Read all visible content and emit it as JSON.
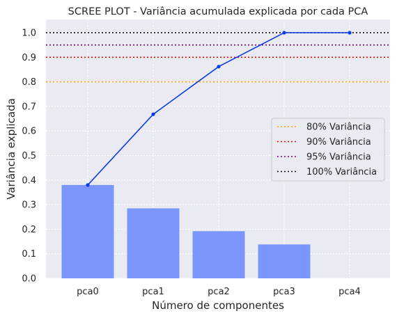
{
  "chart_data": {
    "type": "bar",
    "title": "SCREE PLOT - Variância acumulada explicada por cada PCA",
    "xlabel": "Número de componentes",
    "ylabel": "Variância explicada",
    "categories": [
      "pca0",
      "pca1",
      "pca2",
      "pca3",
      "pca4"
    ],
    "ylim": [
      0,
      1.05
    ],
    "yticks": [
      "0.0",
      "0.1",
      "0.2",
      "0.3",
      "0.4",
      "0.5",
      "0.6",
      "0.7",
      "0.8",
      "0.9",
      "1.0"
    ],
    "grid": true,
    "legend_position": "center-right",
    "bars": {
      "values": [
        0.38,
        0.285,
        0.192,
        0.138,
        0.0
      ],
      "color": "#7b96fa"
    },
    "cumulative_line": {
      "values": [
        0.38,
        0.668,
        0.862,
        1.0,
        1.0
      ],
      "color": "#0a3be6"
    },
    "thresholds": [
      {
        "label": "80% Variância",
        "value": 0.8,
        "color": "#ffa500"
      },
      {
        "label": "90% Variância",
        "value": 0.9,
        "color": "#ff0000"
      },
      {
        "label": "95% Variância",
        "value": 0.95,
        "color": "#800080"
      },
      {
        "label": "100% Variância",
        "value": 1.0,
        "color": "#000000"
      }
    ]
  }
}
